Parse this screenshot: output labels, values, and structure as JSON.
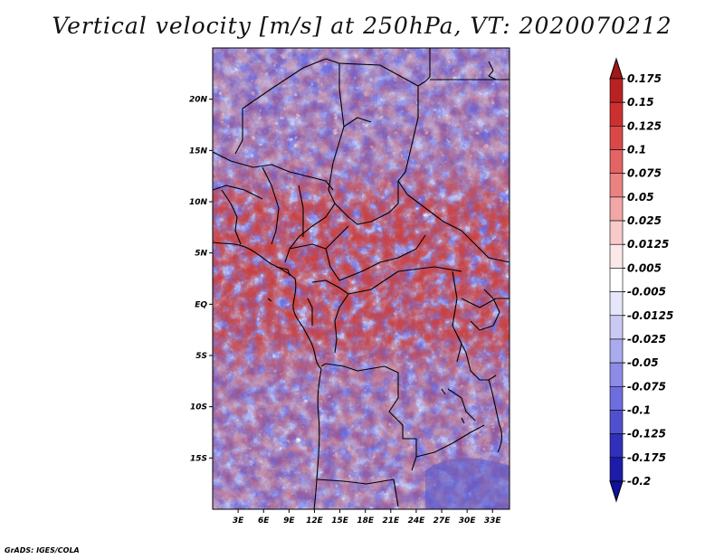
{
  "title": "Vertical velocity [m/s] at 250hPa, VT: 2020070212",
  "credit": "GrADS: IGES/COLA",
  "map": {
    "lon_range": [
      0,
      35
    ],
    "lat_range": [
      -20,
      25
    ],
    "lon_ticks": [
      {
        "value": 3,
        "label": "3E"
      },
      {
        "value": 6,
        "label": "6E"
      },
      {
        "value": 9,
        "label": "9E"
      },
      {
        "value": 12,
        "label": "12E"
      },
      {
        "value": 15,
        "label": "15E"
      },
      {
        "value": 18,
        "label": "18E"
      },
      {
        "value": 21,
        "label": "21E"
      },
      {
        "value": 24,
        "label": "24E"
      },
      {
        "value": 27,
        "label": "27E"
      },
      {
        "value": 30,
        "label": "30E"
      },
      {
        "value": 33,
        "label": "33E"
      }
    ],
    "lat_ticks": [
      {
        "value": 20,
        "label": "20N"
      },
      {
        "value": 15,
        "label": "15N"
      },
      {
        "value": 10,
        "label": "10N"
      },
      {
        "value": 5,
        "label": "5N"
      },
      {
        "value": 0,
        "label": "EQ"
      },
      {
        "value": -5,
        "label": "5S"
      },
      {
        "value": -10,
        "label": "10S"
      },
      {
        "value": -15,
        "label": "15S"
      }
    ]
  },
  "colorbar": {
    "labels": [
      "0.175",
      "0.15",
      "0.125",
      "0.1",
      "0.075",
      "0.05",
      "0.025",
      "0.0125",
      "0.005",
      "-0.005",
      "-0.0125",
      "-0.025",
      "-0.05",
      "-0.075",
      "-0.1",
      "-0.125",
      "-0.175",
      "-0.2"
    ],
    "colors": [
      "#a01818",
      "#b82222",
      "#cc3030",
      "#d94848",
      "#e26464",
      "#ea8282",
      "#f2a6a6",
      "#f8caca",
      "#fce8e8",
      "#ffffff",
      "#e6e6fa",
      "#c9c9f4",
      "#aaaaee",
      "#8c8ce6",
      "#6e6ede",
      "#5050cf",
      "#3030bb",
      "#1c1ca8",
      "#10109a"
    ]
  }
}
